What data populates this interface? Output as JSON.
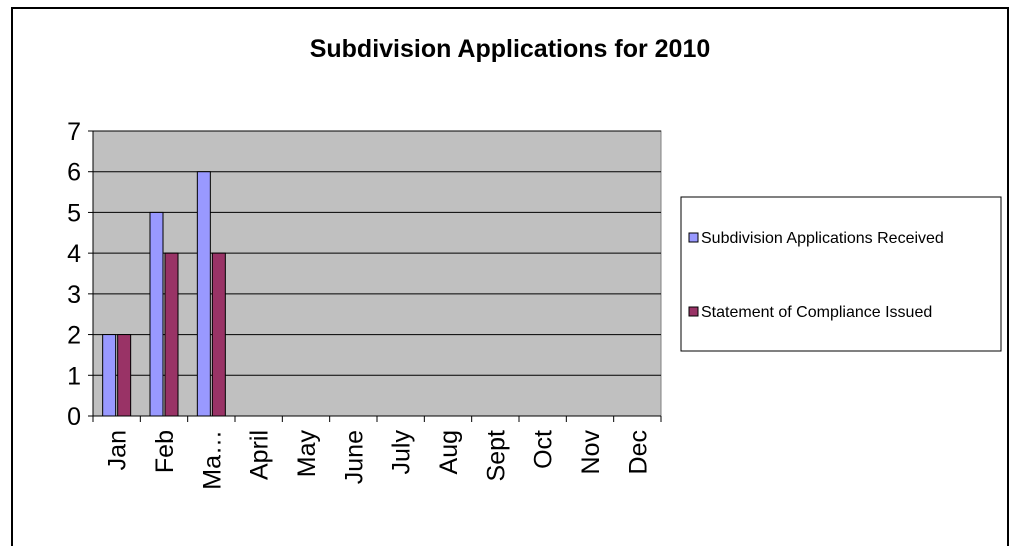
{
  "chart_data": {
    "type": "bar",
    "title": "Subdivision Applications for 2010",
    "xlabel": "",
    "ylabel": "",
    "categories": [
      "Jan",
      "Feb",
      "Ma…",
      "April",
      "May",
      "June",
      "July",
      "Aug",
      "Sept",
      "Oct",
      "Nov",
      "Dec"
    ],
    "series": [
      {
        "name": "Subdivision Applications Received",
        "color": "#9999ff",
        "values": [
          2,
          5,
          6,
          null,
          null,
          null,
          null,
          null,
          null,
          null,
          null,
          null
        ]
      },
      {
        "name": "Statement of Compliance Issued",
        "color": "#993366",
        "values": [
          2,
          4,
          4,
          null,
          null,
          null,
          null,
          null,
          null,
          null,
          null,
          null
        ]
      }
    ],
    "ylim": [
      0,
      7
    ],
    "yticks": [
      0,
      1,
      2,
      3,
      4,
      5,
      6,
      7
    ],
    "grid": true,
    "plot_background": "#c0c0c0",
    "legend_position": "right"
  }
}
